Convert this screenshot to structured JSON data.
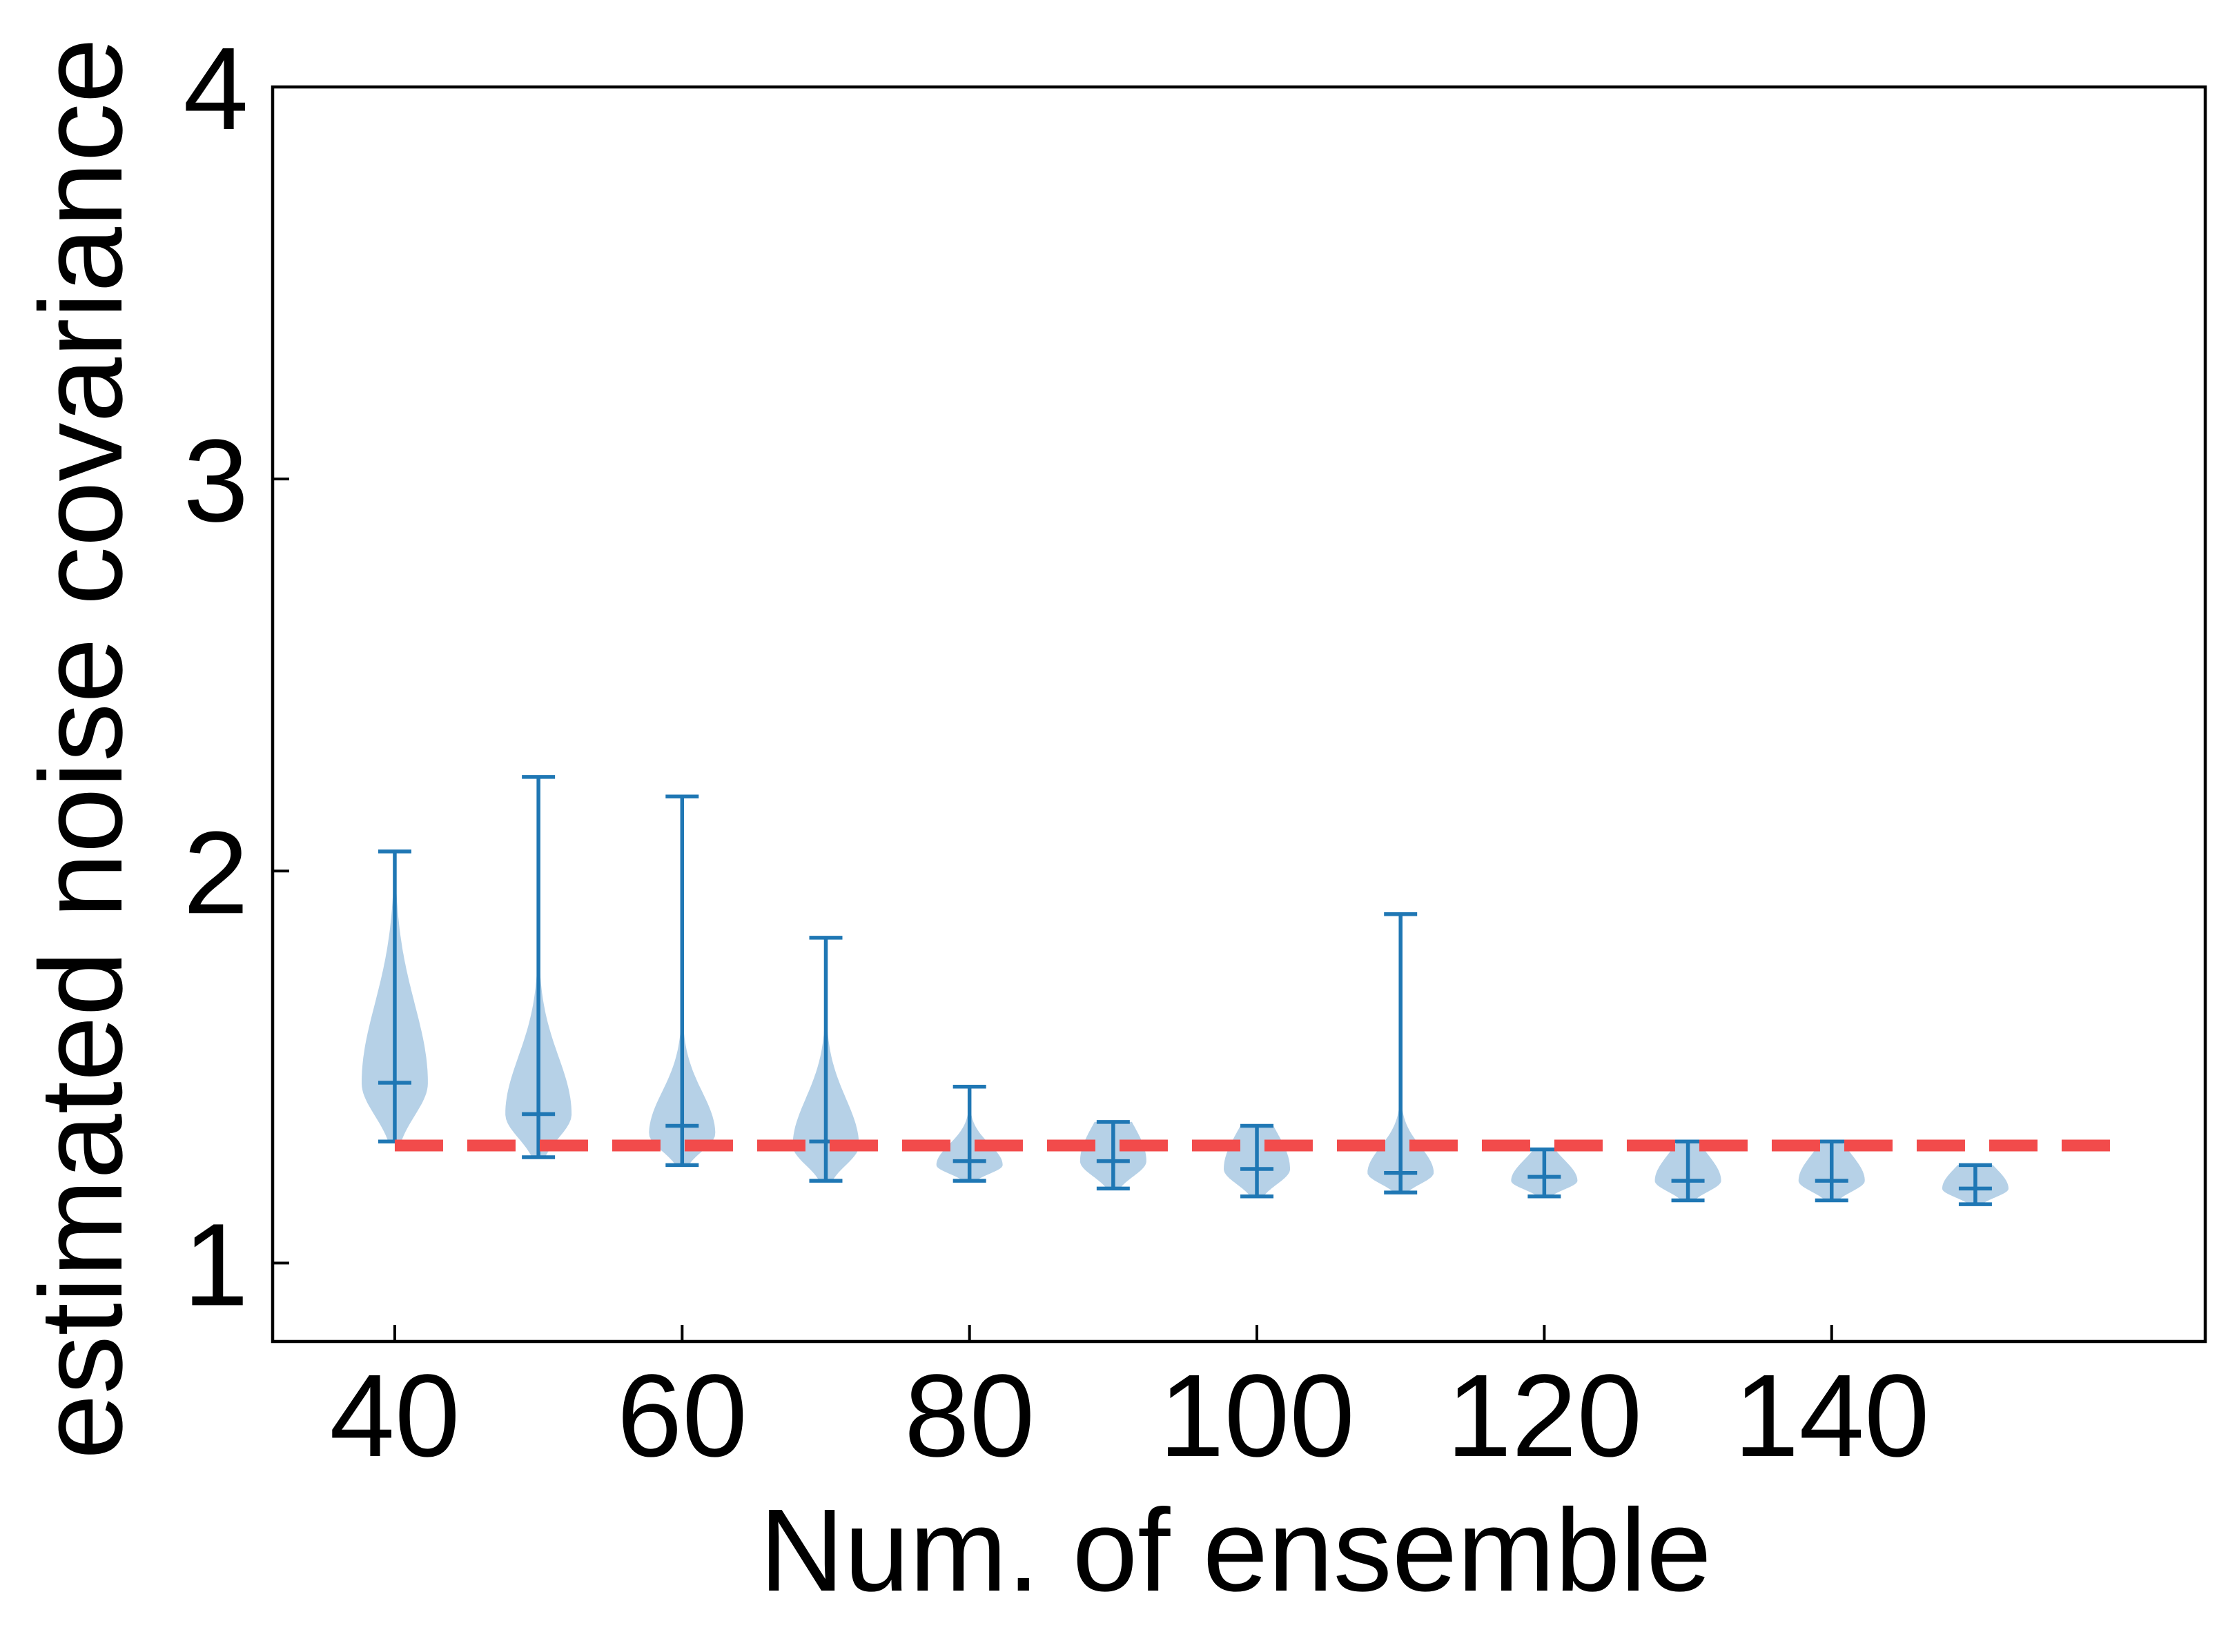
{
  "chart_data": {
    "type": "violin",
    "xlabel": "Num. of ensemble",
    "ylabel": "estimated noise covariance",
    "xlim": [
      31.5,
      166
    ],
    "ylim": [
      0.8,
      4.0
    ],
    "x_ticks": [
      40,
      60,
      80,
      100,
      120,
      140
    ],
    "y_ticks": [
      1,
      2,
      3,
      4
    ],
    "grid": false,
    "reference_line": {
      "y": 1.3,
      "x_range": [
        40,
        160
      ],
      "style": "dashed",
      "color": "#f24b4b"
    },
    "violin_color": "#a9c9e3",
    "stat_color": "#1f77b4",
    "violins": [
      {
        "x": 40,
        "min": 1.31,
        "max": 2.05,
        "mean": 1.46,
        "mode": 1.46,
        "spread": 2.4
      },
      {
        "x": 50,
        "min": 1.27,
        "max": 2.24,
        "mean": 1.38,
        "mode": 1.38,
        "spread": 2.4
      },
      {
        "x": 60,
        "min": 1.25,
        "max": 2.19,
        "mean": 1.35,
        "mode": 1.33,
        "spread": 2.4
      },
      {
        "x": 70,
        "min": 1.21,
        "max": 1.83,
        "mean": 1.31,
        "mode": 1.3,
        "spread": 2.4
      },
      {
        "x": 80,
        "min": 1.21,
        "max": 1.45,
        "mean": 1.26,
        "mode": 1.25,
        "spread": 2.4
      },
      {
        "x": 90,
        "min": 1.19,
        "max": 1.36,
        "mean": 1.26,
        "mode": 1.26,
        "spread": 2.4
      },
      {
        "x": 100,
        "min": 1.17,
        "max": 1.35,
        "mean": 1.24,
        "mode": 1.24,
        "spread": 2.4
      },
      {
        "x": 110,
        "min": 1.18,
        "max": 1.89,
        "mean": 1.23,
        "mode": 1.23,
        "spread": 2.4
      },
      {
        "x": 120,
        "min": 1.17,
        "max": 1.29,
        "mean": 1.22,
        "mode": 1.21,
        "spread": 2.4
      },
      {
        "x": 130,
        "min": 1.16,
        "max": 1.31,
        "mean": 1.21,
        "mode": 1.21,
        "spread": 2.4
      },
      {
        "x": 140,
        "min": 1.16,
        "max": 1.31,
        "mean": 1.21,
        "mode": 1.21,
        "spread": 2.4
      },
      {
        "x": 150,
        "min": 1.15,
        "max": 1.25,
        "mean": 1.19,
        "mode": 1.19,
        "spread": 2.4
      }
    ]
  }
}
